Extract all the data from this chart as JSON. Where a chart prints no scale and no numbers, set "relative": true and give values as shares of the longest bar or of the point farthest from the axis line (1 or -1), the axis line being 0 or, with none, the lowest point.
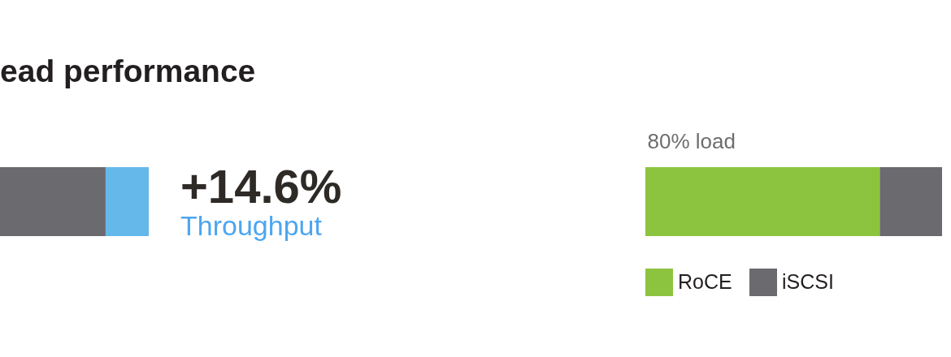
{
  "chart_data": [
    {
      "type": "bar",
      "title": "ead performance",
      "orientation": "horizontal",
      "stacked": true,
      "relative": true,
      "categories": [
        null
      ],
      "series": [
        {
          "color": "#6b6a6f",
          "values": [
            0.71
          ]
        },
        {
          "color": "#64b9ea",
          "values": [
            0.29
          ]
        }
      ],
      "annotations": [
        "+14.6%",
        "Throughput"
      ]
    },
    {
      "type": "bar",
      "orientation": "horizontal",
      "stacked": true,
      "relative": true,
      "categories": [
        "80% load"
      ],
      "series": [
        {
          "name": "RoCE",
          "color": "#8dc43f",
          "values": [
            0.79
          ]
        },
        {
          "name": "iSCSI",
          "color": "#6b6a6f",
          "values": [
            0.21
          ]
        }
      ],
      "legend": "bottom left"
    }
  ]
}
